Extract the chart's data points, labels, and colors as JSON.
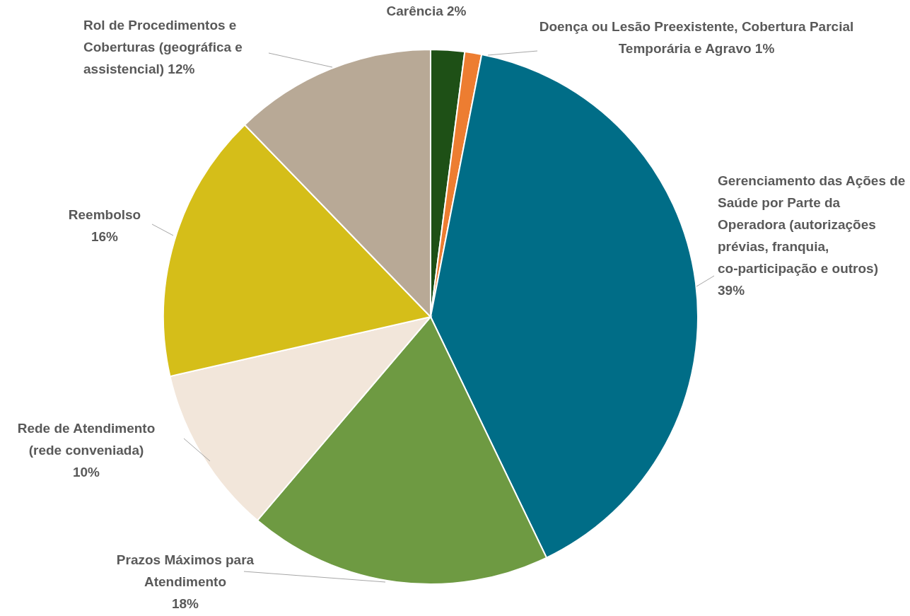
{
  "chart_data": {
    "type": "pie",
    "categories": [
      "Carência",
      "Doença ou Lesão Preexistente, Cobertura Parcial Temporária e Agravo",
      "Gerenciamento das Ações de Saúde por Parte da Operadora (autorizações prévias, franquia, co-participação e outros)",
      "Prazos Máximos para Atendimento",
      "Rede de Atendimento (rede conveniada)",
      "Reembolso",
      "Rol de Procedimentos e Coberturas (geográfica e assistencial) "
    ],
    "values": [
      2,
      1,
      39,
      18,
      10,
      16,
      12
    ],
    "value_labels": [
      "2%",
      "1%",
      "39%",
      "18%",
      "10%",
      "16%",
      "12%"
    ],
    "colors": [
      "#1e5016",
      "#ed7d31",
      "#006d87",
      "#6e9a42",
      "#f2e6da",
      "#d5be19",
      "#b8a996"
    ]
  }
}
